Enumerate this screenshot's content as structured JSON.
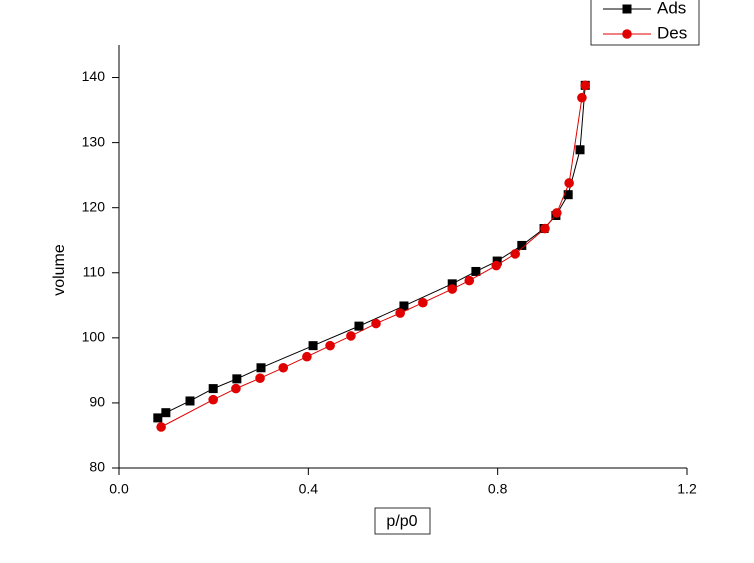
{
  "chart_data": {
    "type": "line",
    "x_label": "p/p0",
    "y_label": "volume",
    "xlim": [
      0,
      1.2
    ],
    "ylim": [
      80,
      145
    ],
    "xticks": [
      {
        "value": 0,
        "label": "0.0"
      },
      0.4,
      0.8,
      {
        "value": 1.2,
        "label": "1.2"
      }
    ],
    "yticks": [
      80,
      90,
      100,
      110,
      120,
      130,
      140
    ],
    "legend": "upper right",
    "series": [
      {
        "name": "Ads",
        "color": "#000000",
        "marker": "square",
        "x": [
          0.082,
          0.099,
          0.15,
          0.199,
          0.249,
          0.3,
          0.41,
          0.507,
          0.602,
          0.704,
          0.754,
          0.799,
          0.851,
          0.898,
          0.923,
          0.949,
          0.974,
          0.985
        ],
        "values": [
          87.7,
          88.5,
          90.3,
          92.2,
          93.7,
          95.4,
          98.8,
          101.8,
          104.9,
          108.3,
          110.2,
          111.8,
          114.2,
          116.8,
          118.8,
          122,
          128.9,
          138.8
        ]
      },
      {
        "name": "Des",
        "color": "#e00000",
        "marker": "circle",
        "x": [
          0.089,
          0.199,
          0.247,
          0.298,
          0.347,
          0.397,
          0.446,
          0.49,
          0.543,
          0.594,
          0.642,
          0.704,
          0.74,
          0.797,
          0.837,
          0.9,
          0.925,
          0.951,
          0.978,
          0.985
        ],
        "values": [
          86.3,
          90.5,
          92.2,
          93.8,
          95.4,
          97.1,
          98.8,
          100.3,
          102.2,
          103.8,
          105.4,
          107.5,
          108.8,
          111.1,
          112.9,
          116.8,
          119.2,
          123.8,
          136.9,
          138.8
        ]
      }
    ]
  }
}
